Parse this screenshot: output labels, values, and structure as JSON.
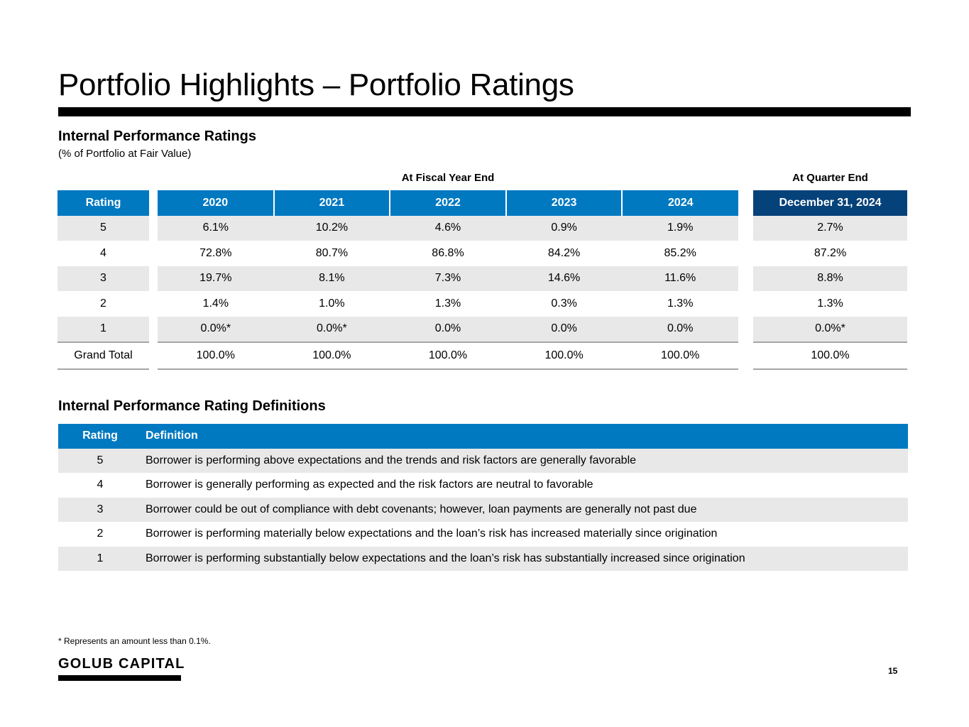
{
  "page": {
    "title": "Portfolio Highlights – Portfolio Ratings",
    "page_number": "15",
    "footnote": "* Represents an amount less than 0.1%.",
    "logo_text": "GOLUB CAPITAL",
    "accent_color": "#0079c1",
    "dark_accent_color": "#06427a"
  },
  "ratings": {
    "title": "Internal Performance Ratings",
    "subtitle": "(% of Portfolio at Fair Value)",
    "fiscal_label": "At Fiscal Year End",
    "quarter_label": "At Quarter End",
    "rating_header": "Rating",
    "year_headers": [
      "2020",
      "2021",
      "2022",
      "2023",
      "2024"
    ],
    "quarter_header": "December 31, 2024",
    "rows": [
      {
        "rating": "5",
        "years": [
          "6.1%",
          "10.2%",
          "4.6%",
          "0.9%",
          "1.9%"
        ],
        "quarter": "2.7%"
      },
      {
        "rating": "4",
        "years": [
          "72.8%",
          "80.7%",
          "86.8%",
          "84.2%",
          "85.2%"
        ],
        "quarter": "87.2%"
      },
      {
        "rating": "3",
        "years": [
          "19.7%",
          "8.1%",
          "7.3%",
          "14.6%",
          "11.6%"
        ],
        "quarter": "8.8%"
      },
      {
        "rating": "2",
        "years": [
          "1.4%",
          "1.0%",
          "1.3%",
          "0.3%",
          "1.3%"
        ],
        "quarter": "1.3%"
      },
      {
        "rating": "1",
        "years": [
          "0.0%*",
          "0.0%*",
          "0.0%",
          "0.0%",
          "0.0%"
        ],
        "quarter": "0.0%*"
      },
      {
        "rating": "Grand Total",
        "years": [
          "100.0%",
          "100.0%",
          "100.0%",
          "100.0%",
          "100.0%"
        ],
        "quarter": "100.0%"
      }
    ]
  },
  "definitions": {
    "title": "Internal Performance Rating Definitions",
    "headers": [
      "Rating",
      "Definition"
    ],
    "rows": [
      {
        "rating": "5",
        "definition": "Borrower is performing above expectations and the trends and risk factors are generally favorable"
      },
      {
        "rating": "4",
        "definition": "Borrower is generally performing as expected and the risk factors are neutral to favorable"
      },
      {
        "rating": "3",
        "definition": "Borrower could be out of compliance with debt covenants; however, loan payments are generally not past due"
      },
      {
        "rating": "2",
        "definition": "Borrower is performing materially below expectations and the loan’s risk has increased materially since origination"
      },
      {
        "rating": "1",
        "definition": "Borrower is performing substantially below expectations and the loan’s risk has substantially increased since origination"
      }
    ]
  }
}
